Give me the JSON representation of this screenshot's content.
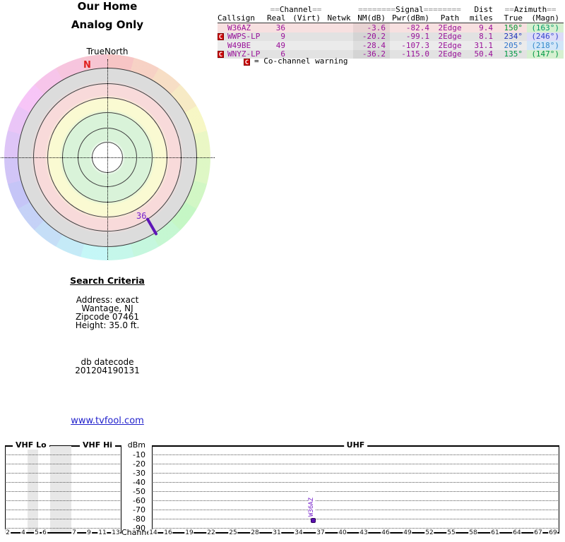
{
  "radar": {
    "title": "Our Home",
    "subtitle": "Analog Only",
    "orientation_label": "TrueNorth",
    "magnetic_north_label": "N",
    "marker_label": "36",
    "marker_color": "#5e16b8"
  },
  "table": {
    "header": {
      "channel_prefix": "==",
      "channel": "Channel",
      "channel_suffix": "==",
      "signal_prefix": "========",
      "signal": "Signal",
      "signal_suffix": "========",
      "dist": "Dist",
      "azimuth_prefix": "==",
      "azimuth": "Azimuth",
      "azimuth_suffix": "==",
      "callsign": "Callsign",
      "real": "Real",
      "virt": "(Virt)",
      "netwk": "Netwk",
      "nm": "NM(dB)",
      "pwr": "Pwr(dBm)",
      "path": "Path",
      "miles": "miles",
      "true": "True",
      "magn": "(Magn)"
    },
    "rows": [
      {
        "warn": "",
        "callsign": "W36AZ",
        "real": "36",
        "virt": "",
        "netwk": "",
        "nm": "-3.6",
        "pwr": "-82.4",
        "path": "2Edge",
        "dist": "9.4",
        "true": "150°",
        "magn": "(163°)",
        "bg": "#f7e0e0",
        "nm_bg": "#e8d3d3",
        "true_color": "#009933",
        "magn_color": "#009966",
        "magn_bg": "#d6f0d0"
      },
      {
        "warn": "C",
        "callsign": "WWPS-LP",
        "real": "9",
        "virt": "",
        "netwk": "",
        "nm": "-20.2",
        "pwr": "-99.1",
        "path": "2Edge",
        "dist": "8.1",
        "true": "234°",
        "magn": "(246°)",
        "bg": "#e2e2e2",
        "nm_bg": "#d4d4d4",
        "true_color": "#2233bb",
        "magn_color": "#3344cc",
        "magn_bg": "#dcdcf8"
      },
      {
        "warn": "",
        "callsign": "W49BE",
        "real": "49",
        "virt": "",
        "netwk": "",
        "nm": "-28.4",
        "pwr": "-107.3",
        "path": "2Edge",
        "dist": "31.1",
        "true": "205°",
        "magn": "(218°)",
        "bg": "#ebebeb",
        "nm_bg": "#dedede",
        "true_color": "#3377cc",
        "magn_color": "#3388cc",
        "magn_bg": "#d2e6f8"
      },
      {
        "warn": "C",
        "callsign": "WNYZ-LP",
        "real": "6",
        "virt": "",
        "netwk": "",
        "nm": "-36.2",
        "pwr": "-115.0",
        "path": "2Edge",
        "dist": "50.4",
        "true": "135°",
        "magn": "(147°)",
        "bg": "#e2e2e2",
        "nm_bg": "#d4d4d4",
        "true_color": "#009944",
        "magn_color": "#009944",
        "magn_bg": "#d6f0d0"
      }
    ],
    "legend": {
      "symbol": "C",
      "text": "= Co-channel warning"
    }
  },
  "search": {
    "heading": "Search Criteria",
    "lines": [
      "Address: exact",
      "Wantage, NJ",
      "Zipcode 07461",
      "Height: 35.0 ft."
    ],
    "db_label": "db datecode",
    "db_value": "201204190131"
  },
  "link": {
    "text": "www.tvfool.com"
  },
  "chart_data": [
    {
      "type": "scatter",
      "subtype": "polar-azimuth-compass",
      "title": "Our Home",
      "subtitle": "Analog Only",
      "orientation": "TrueNorth",
      "magnetic_north_azimuth_deg": -13,
      "rings": [
        "white-center",
        "green",
        "green",
        "yellow",
        "pink",
        "gray",
        "hue-compass"
      ],
      "points": [
        {
          "label": "36",
          "callsign": "W36AZ",
          "azimuth_true_deg": 150
        }
      ]
    },
    {
      "type": "bar",
      "subtype": "tv-spectrum",
      "xlabel": "Channel",
      "ylabel": "dBm",
      "yticks": [
        -10,
        -20,
        -30,
        -40,
        -50,
        -60,
        -70,
        -80,
        -90
      ],
      "panels": [
        {
          "title_left": "VHF Lo",
          "title_right": "VHF Hi",
          "channels": [
            2,
            4,
            5,
            6,
            7,
            9,
            11,
            13
          ],
          "shaded_channel_gaps": [
            [
              4,
              5
            ],
            [
              6,
              7
            ]
          ]
        },
        {
          "title": "UHF",
          "channels": [
            14,
            16,
            19,
            22,
            25,
            28,
            31,
            34,
            37,
            40,
            43,
            46,
            49,
            52,
            55,
            58,
            61,
            64,
            67,
            69
          ]
        }
      ],
      "bars": [
        {
          "label": "W36AZ",
          "channel": 36,
          "value_dbm": -82.4,
          "color": "#5a10b0"
        }
      ]
    }
  ]
}
